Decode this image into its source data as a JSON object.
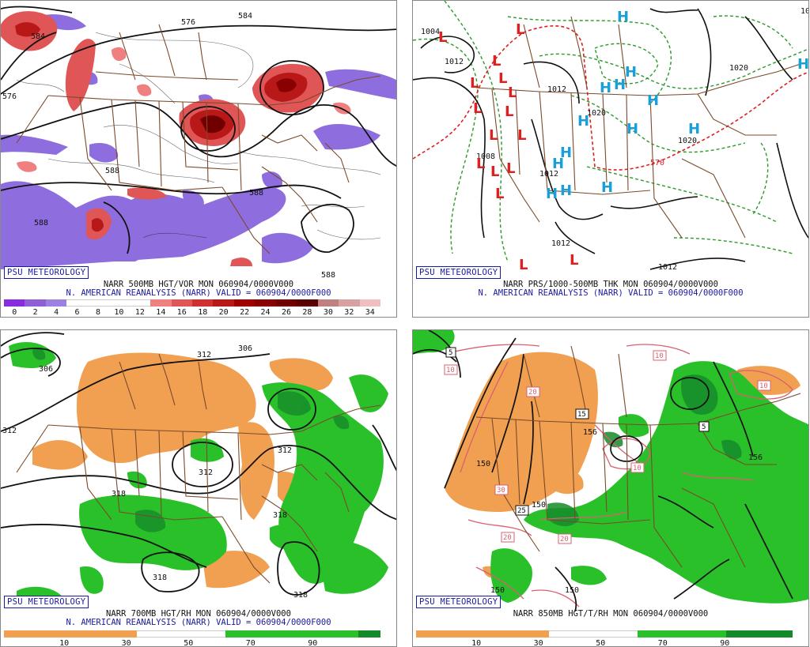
{
  "badge": "PSU METEOROLOGY",
  "subtitle": "N. AMERICAN REANALYSIS (NARR) VALID = 060904/0000F000",
  "panels": {
    "vorticity": {
      "title": "NARR 500MB HGT/VOR MON 060904/0000V000",
      "scale_labels": [
        "0",
        "2",
        "4",
        "6",
        "8",
        "10",
        "12",
        "14",
        "16",
        "18",
        "20",
        "22",
        "24",
        "26",
        "28",
        "30",
        "32",
        "34"
      ],
      "scale_colors": [
        "#8a2be2",
        "#8f5fd6",
        "#9c80e2",
        "#ffffff",
        "#ffffff",
        "#ffffff",
        "#ffffff",
        "#f08080",
        "#e05555",
        "#d03030",
        "#b81818",
        "#a00000",
        "#880000",
        "#700000",
        "#5a0000",
        "#c08080",
        "#d8a0a0",
        "#f0c0c0"
      ],
      "contours": [
        "576",
        "576",
        "584",
        "584",
        "588",
        "588",
        "588",
        "588"
      ]
    },
    "pressure": {
      "title": "NARR PRS/1000-500MB THK MON 060904/0000V000",
      "highs": [
        "H",
        "H",
        "H",
        "H",
        "H",
        "H",
        "H",
        "H",
        "H",
        "H",
        "H",
        "H",
        "H",
        "H"
      ],
      "lows": [
        "L",
        "L",
        "L",
        "L",
        "L",
        "L",
        "L",
        "L",
        "L",
        "L",
        "L",
        "L",
        "L",
        "L",
        "L",
        "L"
      ],
      "contours": [
        "1012",
        "1004",
        "1012",
        "1012",
        "1008",
        "1020",
        "1020",
        "1012",
        "1012",
        "1020",
        "1012",
        "570"
      ]
    },
    "rh700": {
      "title": "NARR 700MB HGT/RH MON 060904/0000V000",
      "scale_labels": [
        "10",
        "30",
        "50",
        "70",
        "90"
      ],
      "contours": [
        "306",
        "306",
        "312",
        "312",
        "312",
        "318",
        "318",
        "318",
        "318",
        "312"
      ]
    },
    "rh850": {
      "title": "NARR 850MB HGT/T/RH MON 060904/0000V000",
      "scale_labels": [
        "10",
        "30",
        "50",
        "70",
        "90"
      ],
      "contours": [
        "150",
        "150",
        "150",
        "156",
        "156",
        "150"
      ],
      "temp_boxes": [
        "5",
        "10",
        "10",
        "20",
        "15",
        "5",
        "10",
        "30",
        "25",
        "20",
        "20",
        "10"
      ]
    }
  },
  "colors": {
    "hgt": "#111111",
    "border": "#7b4a2a",
    "vort_red": "#e05555",
    "vort_dark": "#8a0000",
    "vort_purple": "#8866dd",
    "high_cyan": "#1aa0d8",
    "low_red": "#e02020",
    "thk_green": "#2a9a2a",
    "thk_red": "#dd2020",
    "dry": "#f0a050",
    "moist": "#2ac02a",
    "moist_dark": "#158a2a",
    "temp_pink": "#d86070",
    "badge": "#1a1aa0"
  }
}
